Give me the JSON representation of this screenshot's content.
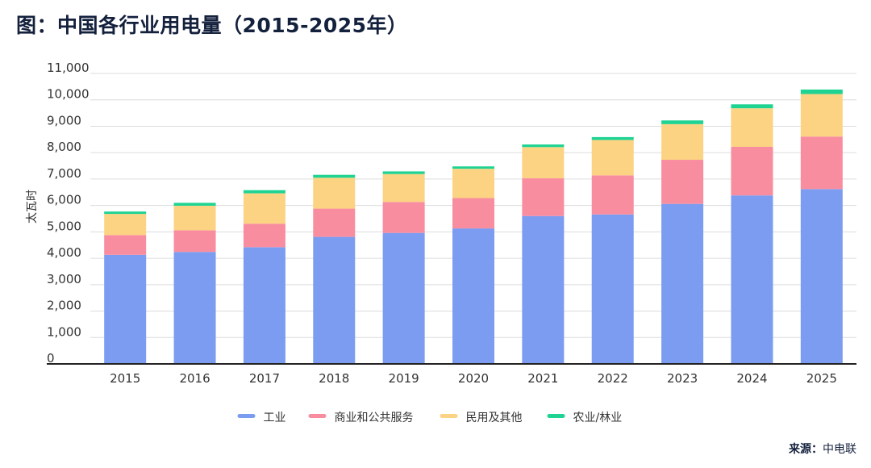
{
  "title": "图：中国各行业用电量（2015-2025年）",
  "source": {
    "label": "来源：",
    "value": "中电联"
  },
  "chart_data": {
    "type": "bar",
    "stacked": true,
    "title": "图：中国各行业用电量（2015-2025年）",
    "xlabel": "",
    "ylabel": "太瓦时",
    "ylim": [
      0,
      11000
    ],
    "yticks": [
      0,
      1000,
      2000,
      3000,
      4000,
      5000,
      6000,
      7000,
      8000,
      9000,
      10000,
      11000
    ],
    "ytick_labels": [
      "0",
      "1,000",
      "2,000",
      "3,000",
      "4,000",
      "5,000",
      "6,000",
      "7,000",
      "8,000",
      "9,000",
      "10,000",
      "11,000"
    ],
    "grid": true,
    "legend_position": "bottom-center",
    "categories": [
      "2015",
      "2016",
      "2017",
      "2018",
      "2019",
      "2020",
      "2021",
      "2022",
      "2023",
      "2024",
      "2025"
    ],
    "series": [
      {
        "name": "工业",
        "color": "#7b9cf0",
        "values": [
          4130,
          4240,
          4420,
          4810,
          4960,
          5130,
          5600,
          5660,
          6060,
          6380,
          6620
        ]
      },
      {
        "name": "商业和公共服务",
        "color": "#f98da0",
        "values": [
          750,
          820,
          890,
          1070,
          1170,
          1150,
          1430,
          1480,
          1670,
          1840,
          1990
        ]
      },
      {
        "name": "民用及其他",
        "color": "#fbd383",
        "values": [
          800,
          930,
          1150,
          1170,
          1060,
          1110,
          1180,
          1340,
          1350,
          1460,
          1610
        ]
      },
      {
        "name": "农业/林业",
        "color": "#1fd393",
        "values": [
          90,
          110,
          120,
          110,
          100,
          90,
          100,
          110,
          140,
          150,
          170
        ]
      }
    ]
  }
}
